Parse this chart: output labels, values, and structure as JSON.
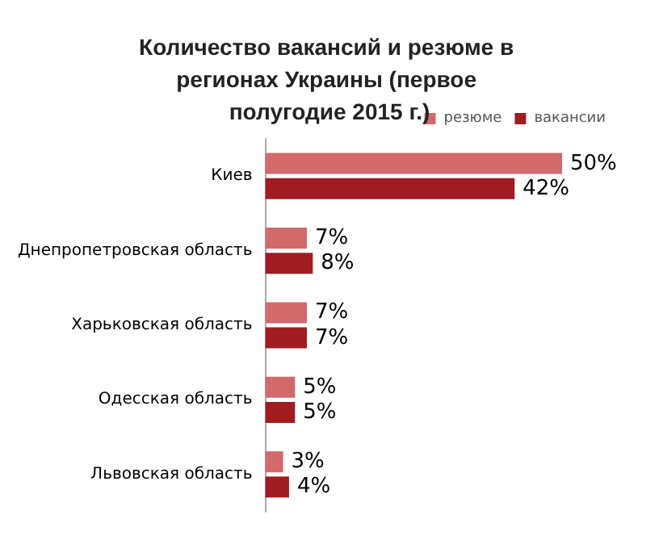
{
  "chart_data": {
    "type": "bar",
    "orientation": "horizontal",
    "title": "Количество вакансий и резюме в регионах Украины (первое полугодие 2015 г.)",
    "categories": [
      "Киев",
      "Днепропетровская область",
      "Харьковская область",
      "Одесская область",
      "Львовская область"
    ],
    "series": [
      {
        "name": "резюме",
        "color": "#d2696a",
        "values": [
          50,
          7,
          7,
          5,
          3
        ],
        "value_labels": [
          "50%",
          "7%",
          "7%",
          "5%",
          "3%"
        ]
      },
      {
        "name": "вакансии",
        "color": "#a01c20",
        "values": [
          42,
          8,
          7,
          5,
          4
        ],
        "value_labels": [
          "42%",
          "8%",
          "7%",
          "5%",
          "4%"
        ]
      }
    ],
    "legend": "top right"
  }
}
